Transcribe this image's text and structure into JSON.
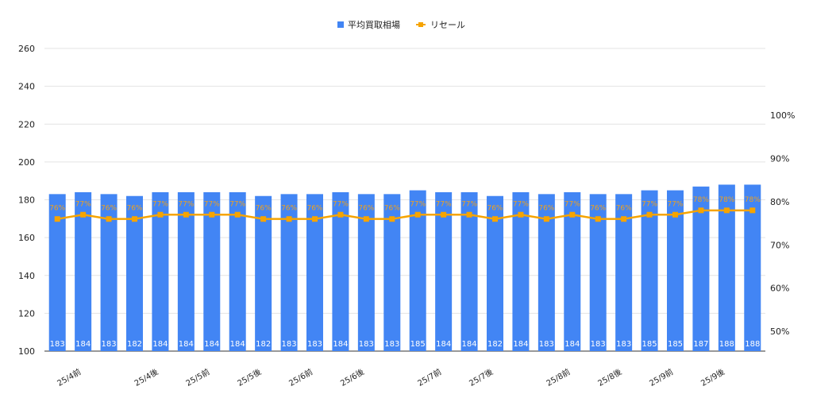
{
  "chart_data": {
    "type": "bar",
    "title": "",
    "legend": {
      "placement": "top-center"
    },
    "grid": true,
    "colors": {
      "bar": "#4285f4",
      "line": "#f6a400",
      "grid": "#e3e3e3",
      "text": "#222222"
    },
    "left_axis": {
      "ylim": [
        100,
        260
      ],
      "ticks": [
        100,
        120,
        140,
        160,
        180,
        200,
        220,
        240,
        260
      ]
    },
    "right_axis": {
      "ylim": [
        45.4,
        115.5
      ],
      "ticks": [
        50,
        60,
        70,
        80,
        90,
        100
      ],
      "tick_labels": [
        "50%",
        "60%",
        "70%",
        "80%",
        "90%",
        "100%"
      ]
    },
    "x_tick_labels": [
      {
        "index": 1,
        "label": "25/4前"
      },
      {
        "index": 4,
        "label": "25/4後"
      },
      {
        "index": 6,
        "label": "25/5前"
      },
      {
        "index": 8,
        "label": "25/5後"
      },
      {
        "index": 10,
        "label": "25/6前"
      },
      {
        "index": 12,
        "label": "25/6後"
      },
      {
        "index": 15,
        "label": "25/7前"
      },
      {
        "index": 17,
        "label": "25/7後"
      },
      {
        "index": 20,
        "label": "25/8前"
      },
      {
        "index": 22,
        "label": "25/8後"
      },
      {
        "index": 24,
        "label": "25/9前"
      },
      {
        "index": 26,
        "label": "25/9後"
      }
    ],
    "series": [
      {
        "name": "平均買取相場",
        "type": "bar",
        "axis": "left",
        "values": [
          183,
          184,
          183,
          182,
          184,
          184,
          184,
          184,
          182,
          183,
          183,
          184,
          183,
          183,
          185,
          184,
          184,
          182,
          184,
          183,
          184,
          183,
          183,
          185,
          185,
          187,
          188,
          188
        ]
      },
      {
        "name": "リセール",
        "type": "line",
        "axis": "right",
        "values": [
          76,
          77,
          76,
          76,
          77,
          77,
          77,
          77,
          76,
          76,
          76,
          77,
          76,
          76,
          77,
          77,
          77,
          76,
          77,
          76,
          77,
          76,
          76,
          77,
          77,
          78,
          78,
          78
        ],
        "labels": [
          "76%",
          "77%",
          "76%",
          "76%",
          "77%",
          "77%",
          "77%",
          "77%",
          "76%",
          "76%",
          "76%",
          "77%",
          "76%",
          "76%",
          "77%",
          "77%",
          "77%",
          "76%",
          "77%",
          "76%",
          "77%",
          "76%",
          "76%",
          "77%",
          "77%",
          "78%",
          "78%",
          "78%"
        ]
      }
    ]
  }
}
